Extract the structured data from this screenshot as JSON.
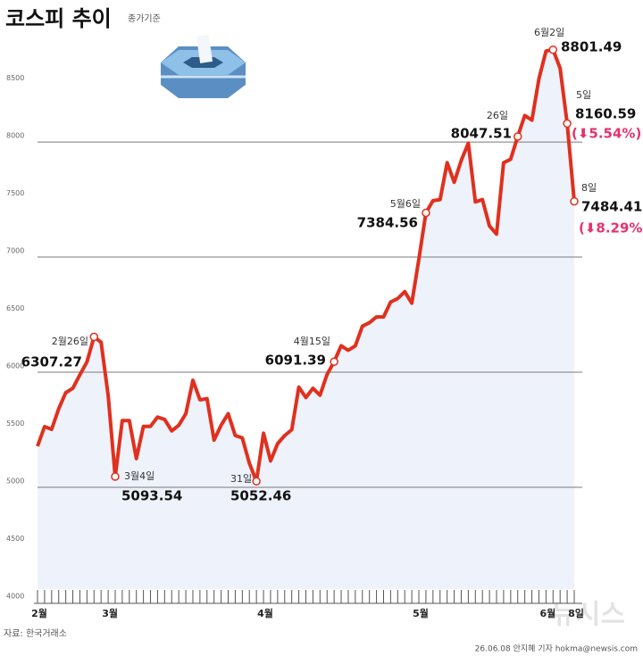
{
  "chart_data": {
    "type": "line",
    "title": "코스피 추이",
    "subtitle": "종가기준",
    "source": "자료: 한국거래소",
    "credit": "26.06.08 안지혜 기자 hokma@newsis.com",
    "watermark": "뉴시스",
    "categories": [
      "2월",
      null,
      null,
      null,
      null,
      null,
      null,
      null,
      null,
      null,
      "3월",
      null,
      null,
      null,
      null,
      null,
      null,
      null,
      null,
      null,
      null,
      null,
      null,
      null,
      null,
      null,
      null,
      null,
      null,
      null,
      null,
      null,
      "4월",
      null,
      null,
      null,
      null,
      null,
      null,
      null,
      null,
      null,
      null,
      null,
      null,
      null,
      null,
      null,
      null,
      null,
      null,
      null,
      null,
      null,
      "5월",
      null,
      null,
      null,
      null,
      null,
      null,
      null,
      null,
      null,
      null,
      null,
      null,
      null,
      null,
      null,
      null,
      null,
      "6월",
      null,
      null,
      null,
      "8일"
    ],
    "series": [
      {
        "name": "코스피",
        "color": "#e0301e",
        "values": [
          5357,
          5527,
          5504,
          5682,
          5822,
          5860,
          5977,
          6090,
          6307.27,
          6260,
          5800,
          5093.54,
          5580,
          5580,
          5250,
          5530,
          5530,
          5610,
          5590,
          5490,
          5540,
          5640,
          5930,
          5760,
          5770,
          5410,
          5540,
          5640,
          5450,
          5430,
          5210,
          5052.46,
          5470,
          5230,
          5380,
          5450,
          5500,
          5870,
          5780,
          5860,
          5800,
          5980,
          6091.39,
          6230,
          6190,
          6230,
          6400,
          6430,
          6480,
          6480,
          6610,
          6640,
          6700,
          6600,
          6980,
          7384.56,
          7490,
          7500,
          7820,
          7650,
          7840,
          7990,
          7480,
          7500,
          7270,
          7200,
          7820,
          7850,
          8047.51,
          8230,
          8190,
          8550,
          8790,
          8801.49,
          8640,
          8160.59,
          7484.41
        ]
      }
    ],
    "annotations": [
      {
        "index": 8,
        "date": "2월26일"
      },
      {
        "index": 11,
        "date": "3월4일"
      },
      {
        "index": 31,
        "date": "31일"
      },
      {
        "index": 42,
        "date": "4월15일"
      },
      {
        "index": 55,
        "date": "5월6일"
      },
      {
        "index": 68,
        "date": "26일"
      },
      {
        "index": 73,
        "date": "6월2일"
      },
      {
        "index": 75,
        "date": "5일",
        "change": "(⬇5.54%)"
      },
      {
        "index": 76,
        "date": "8일",
        "change": "(⬇8.29%)"
      }
    ],
    "ylim": [
      4000,
      8900
    ],
    "yticks": [
      4000,
      4500,
      5000,
      5500,
      6000,
      6500,
      7000,
      7500,
      8000,
      8500
    ],
    "grid": true,
    "change_color": "#e5336d"
  }
}
